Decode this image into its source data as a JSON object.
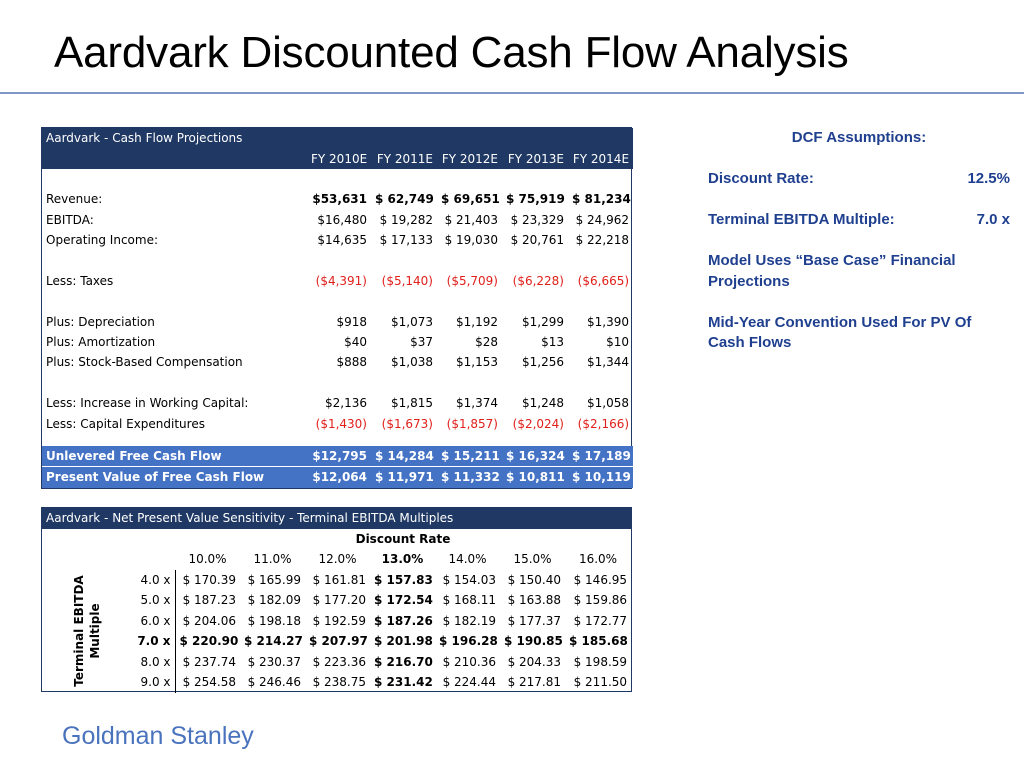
{
  "title": "Aardvark Discounted Cash Flow Analysis",
  "footer": "Goldman Stanley",
  "cashflow": {
    "title": "Aardvark - Cash Flow Projections",
    "years": [
      "FY 2010E",
      "FY 2011E",
      "FY 2012E",
      "FY 2013E",
      "FY 2014E"
    ],
    "rows": {
      "revenue": {
        "label": "Revenue:",
        "values": [
          "$53,631",
          "$ 62,749",
          "$ 69,651",
          "$ 75,919",
          "$ 81,234"
        ]
      },
      "ebitda": {
        "label": "EBITDA:",
        "values": [
          "$16,480",
          "$ 19,282",
          "$ 21,403",
          "$ 23,329",
          "$ 24,962"
        ]
      },
      "opinc": {
        "label": "Operating Income:",
        "values": [
          "$14,635",
          "$ 17,133",
          "$ 19,030",
          "$ 20,761",
          "$ 22,218"
        ]
      },
      "taxes": {
        "label": "Less: Taxes",
        "values": [
          "($4,391)",
          "($5,140)",
          "($5,709)",
          "($6,228)",
          "($6,665)"
        ]
      },
      "dep": {
        "label": "Plus: Depreciation",
        "values": [
          "$918",
          "$1,073",
          "$1,192",
          "$1,299",
          "$1,390"
        ]
      },
      "amort": {
        "label": "Plus: Amortization",
        "values": [
          "$40",
          "$37",
          "$28",
          "$13",
          "$10"
        ]
      },
      "sbc": {
        "label": "Plus: Stock-Based Compensation",
        "values": [
          "$888",
          "$1,038",
          "$1,153",
          "$1,256",
          "$1,344"
        ]
      },
      "wc": {
        "label": "Less: Increase in Working Capital:",
        "values": [
          "$2,136",
          "$1,815",
          "$1,374",
          "$1,248",
          "$1,058"
        ]
      },
      "capex": {
        "label": "Less: Capital Expenditures",
        "values": [
          "($1,430)",
          "($1,673)",
          "($1,857)",
          "($2,024)",
          "($2,166)"
        ]
      },
      "ufcf": {
        "label": "Unlevered Free Cash Flow",
        "values": [
          "$12,795",
          "$ 14,284",
          "$ 15,211",
          "$ 16,324",
          "$ 17,189"
        ]
      },
      "pv": {
        "label": "Present Value of Free Cash Flow",
        "values": [
          "$12,064",
          "$ 11,971",
          "$ 11,332",
          "$ 10,811",
          "$ 10,119"
        ]
      }
    }
  },
  "npv": {
    "title": "Aardvark - Net Present Value Sensitivity - Terminal EBITDA Multiples",
    "col_header": "Discount Rate",
    "row_header_line1": "Terminal EBITDA",
    "row_header_line2": "Multiple",
    "rates": [
      "10.0%",
      "11.0%",
      "12.0%",
      "13.0%",
      "14.0%",
      "15.0%",
      "16.0%"
    ],
    "rows": [
      {
        "mult": "4.0 x",
        "values": [
          "$ 170.39",
          "$ 165.99",
          "$ 161.81",
          "$ 157.83",
          "$ 154.03",
          "$ 150.40",
          "$ 146.95"
        ]
      },
      {
        "mult": "5.0 x",
        "values": [
          "$ 187.23",
          "$ 182.09",
          "$ 177.20",
          "$ 172.54",
          "$ 168.11",
          "$ 163.88",
          "$ 159.86"
        ]
      },
      {
        "mult": "6.0 x",
        "values": [
          "$ 204.06",
          "$ 198.18",
          "$ 192.59",
          "$ 187.26",
          "$ 182.19",
          "$ 177.37",
          "$ 172.77"
        ]
      },
      {
        "mult": "7.0 x",
        "values": [
          "$ 220.90",
          "$ 214.27",
          "$ 207.97",
          "$ 201.98",
          "$ 196.28",
          "$ 190.85",
          "$ 185.68"
        ]
      },
      {
        "mult": "8.0 x",
        "values": [
          "$ 237.74",
          "$ 230.37",
          "$ 223.36",
          "$ 216.70",
          "$ 210.36",
          "$ 204.33",
          "$ 198.59"
        ]
      },
      {
        "mult": "9.0 x",
        "values": [
          "$ 254.58",
          "$ 246.46",
          "$ 238.75",
          "$ 231.42",
          "$ 224.44",
          "$ 217.81",
          "$ 211.50"
        ]
      }
    ]
  },
  "assumptions": {
    "heading": "DCF Assumptions:",
    "discount_label": "Discount Rate:",
    "discount_value": "12.5%",
    "multiple_label": "Terminal EBITDA Multiple:",
    "multiple_value": "7.0 x",
    "note1": "Model Uses “Base Case” Financial Projections",
    "note2": "Mid-Year Convention Used For PV Of Cash Flows"
  },
  "colors": {
    "header_navy": "#1f3864",
    "fcf_blue": "#4472c4",
    "negative_red": "#e0201b",
    "assumption_blue": "#1f3f8f",
    "footer_blue": "#4a73bd"
  }
}
